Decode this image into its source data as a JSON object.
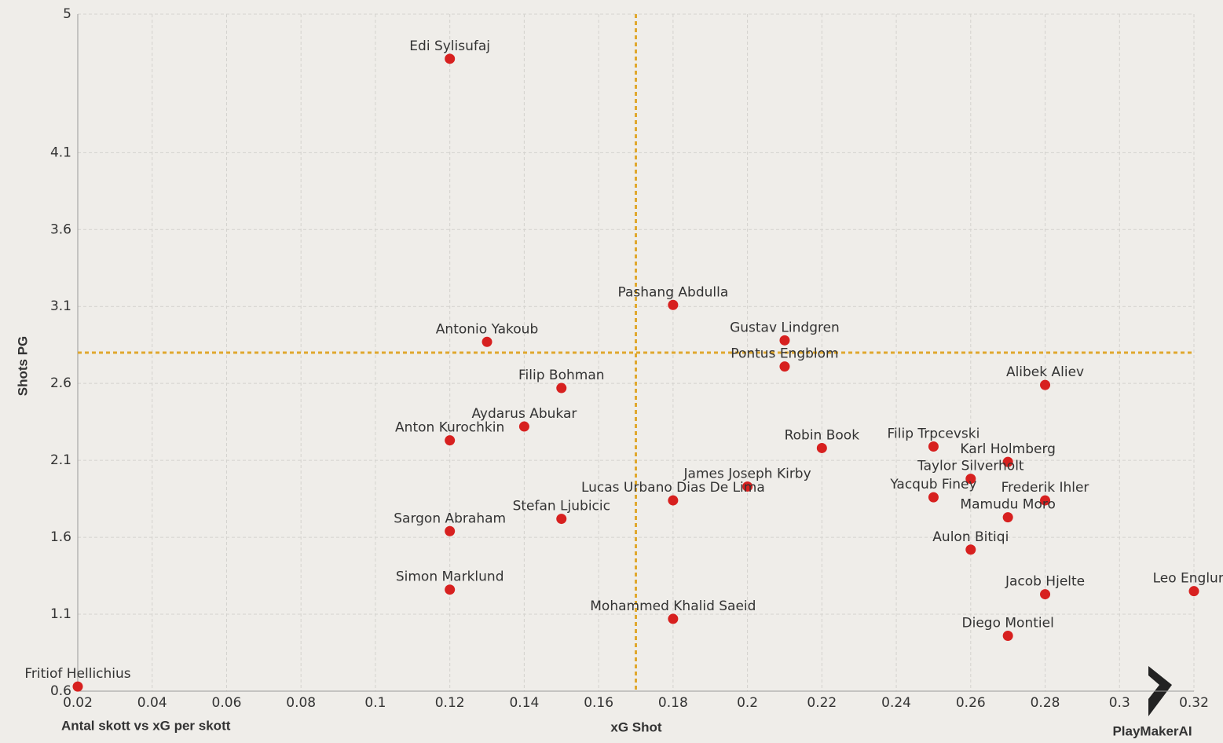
{
  "chart_data": {
    "type": "scatter",
    "title": "Antal skott vs xG per skott",
    "x_label": "xG Shot",
    "y_label": "Shots PG",
    "logo": "PlayMakerAI",
    "color": "#d7201f",
    "ref_line_color": "#e0a82e",
    "grid": true,
    "xlim": [
      0.02,
      0.32
    ],
    "ylim": [
      0.6,
      5
    ],
    "xticks": [
      0.02,
      0.04,
      0.06,
      0.08,
      0.1,
      0.12,
      0.14,
      0.16,
      0.18,
      0.2,
      0.22,
      0.24,
      0.26,
      0.28,
      0.3,
      0.32
    ],
    "yticks": [
      0.6,
      1.1,
      1.6,
      2.1,
      2.6,
      3.1,
      3.6,
      4.1,
      5
    ],
    "x_ref_line": 0.17,
    "y_ref_line": 2.8,
    "labels": [
      "Edi Sylisufaj",
      "Pashang Abdulla",
      "Antonio Yakoub",
      "Gustav Lindgren",
      "Pontus Engblom",
      "Filip Bohman",
      "Alibek Aliev",
      "Aydarus Abukar",
      "Anton Kurochkin",
      "Robin Book",
      "Filip Trpcevski",
      "Karl Holmberg",
      "Taylor Silverholt",
      "James Joseph Kirby",
      "Lucas Urbano Dias De Lima",
      "Yacqub Finey",
      "Frederik Ihler",
      "Stefan Ljubicic",
      "Mamudu Moro",
      "Sargon Abraham",
      "Aulon Bitiqi",
      "Simon Marklund",
      "Jacob Hjelte",
      "Leo Englund",
      "Mohammed Khalid Saeid",
      "Diego Montiel",
      "Fritiof Hellichius"
    ],
    "x": [
      0.12,
      0.18,
      0.13,
      0.21,
      0.21,
      0.15,
      0.28,
      0.14,
      0.12,
      0.22,
      0.25,
      0.27,
      0.26,
      0.2,
      0.18,
      0.25,
      0.28,
      0.15,
      0.27,
      0.12,
      0.26,
      0.12,
      0.28,
      0.32,
      0.18,
      0.27,
      0.02
    ],
    "values": [
      4.71,
      3.11,
      2.87,
      2.88,
      2.71,
      2.57,
      2.59,
      2.32,
      2.23,
      2.18,
      2.19,
      2.09,
      1.98,
      1.93,
      1.84,
      1.86,
      1.84,
      1.72,
      1.73,
      1.64,
      1.52,
      1.26,
      1.23,
      1.25,
      1.07,
      0.96,
      0.63
    ]
  }
}
